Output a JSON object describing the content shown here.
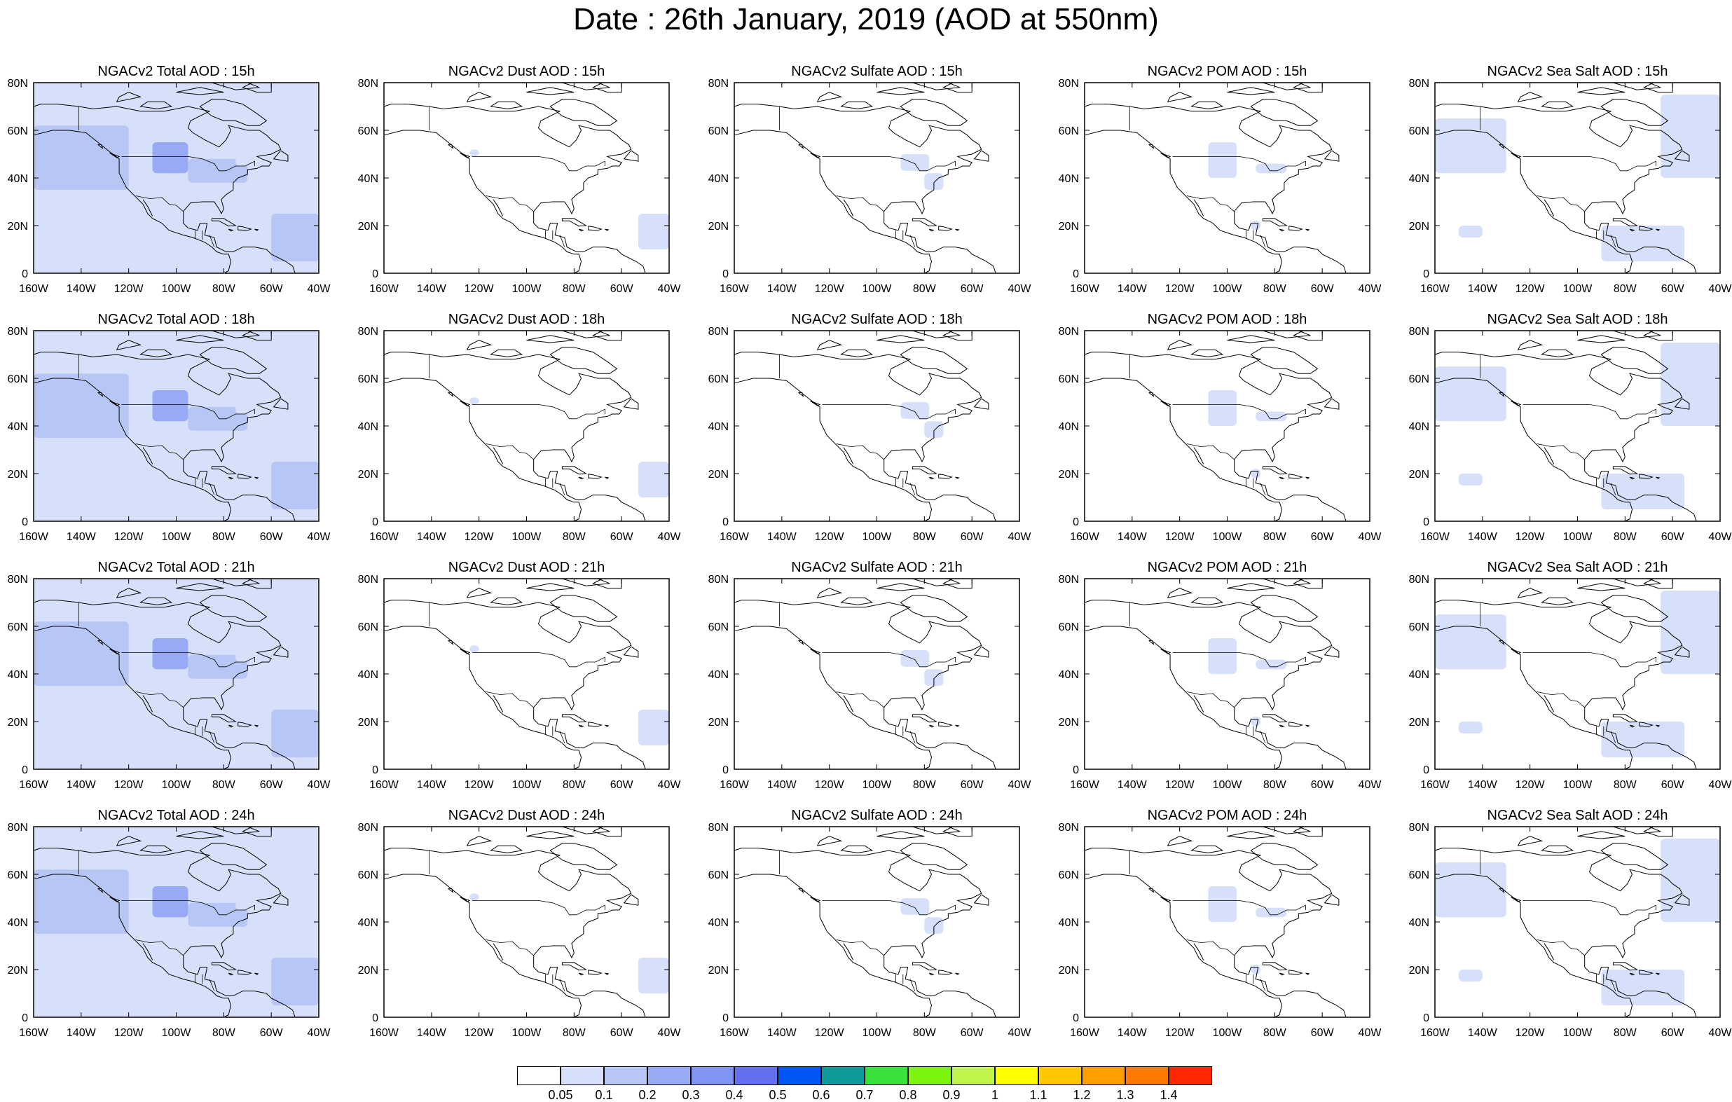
{
  "title": "Date : 26th January, 2019 (AOD at 550nm)",
  "axes": {
    "lon_ticks": [
      "160W",
      "140W",
      "120W",
      "100W",
      "80W",
      "60W",
      "40W"
    ],
    "lat_ticks": [
      "80N",
      "60N",
      "40N",
      "20N",
      "0"
    ],
    "lon_range": [
      -160,
      -40
    ],
    "lat_range": [
      0,
      80
    ]
  },
  "colorbar": {
    "colors": [
      "#ffffff",
      "#d6e0fb",
      "#b7c6f5",
      "#98aaf5",
      "#8095f5",
      "#6470ef",
      "#0057f5",
      "#0f9b9b",
      "#38e238",
      "#7cf50e",
      "#c2f54a",
      "#ffff00",
      "#ffc800",
      "#ffa000",
      "#ff7800",
      "#ff2800"
    ],
    "labels": [
      "0.05",
      "0.1",
      "0.2",
      "0.3",
      "0.4",
      "0.5",
      "0.6",
      "0.7",
      "0.8",
      "0.9",
      "1",
      "1.1",
      "1.2",
      "1.3",
      "1.4"
    ]
  },
  "panel_rows": [
    [
      "NGACv2 Total AOD : 15h",
      "NGACv2 Dust AOD : 15h",
      "NGACv2 Sulfate AOD : 15h",
      "NGACv2 POM AOD : 15h",
      "NGACv2 Sea Salt AOD : 15h"
    ],
    [
      "NGACv2 Total AOD : 18h",
      "NGACv2 Dust AOD : 18h",
      "NGACv2 Sulfate AOD : 18h",
      "NGACv2 POM AOD : 18h",
      "NGACv2 Sea Salt AOD : 18h"
    ],
    [
      "NGACv2 Total AOD : 21h",
      "NGACv2 Dust AOD : 21h",
      "NGACv2 Sulfate AOD : 21h",
      "NGACv2 POM AOD : 21h",
      "NGACv2 Sea Salt AOD : 21h"
    ],
    [
      "NGACv2 Total AOD : 24h",
      "NGACv2 Dust AOD : 24h",
      "NGACv2 Sulfate AOD : 24h",
      "NGACv2 POM AOD : 24h",
      "NGACv2 Sea Salt  AOD : 24h"
    ]
  ],
  "fields": {
    "total": [
      {
        "lon": [
          -160,
          -40
        ],
        "lat": [
          0,
          80
        ],
        "level": 1
      },
      {
        "lon": [
          -160,
          -120
        ],
        "lat": [
          35,
          62
        ],
        "level": 2
      },
      {
        "lon": [
          -110,
          -95
        ],
        "lat": [
          42,
          55
        ],
        "level": 3
      },
      {
        "lon": [
          -95,
          -70
        ],
        "lat": [
          38,
          48
        ],
        "level": 2
      },
      {
        "lon": [
          -60,
          -40
        ],
        "lat": [
          5,
          25
        ],
        "level": 2
      },
      {
        "lon": [
          -75,
          -40
        ],
        "lat": [
          45,
          60
        ],
        "level": 1
      }
    ],
    "dust": [
      {
        "lon": [
          -53,
          -40
        ],
        "lat": [
          10,
          25
        ],
        "level": 1
      },
      {
        "lon": [
          -124,
          -120
        ],
        "lat": [
          49,
          52
        ],
        "level": 1
      }
    ],
    "sulfate": [
      {
        "lon": [
          -90,
          -78
        ],
        "lat": [
          43,
          50
        ],
        "level": 1
      },
      {
        "lon": [
          -80,
          -72
        ],
        "lat": [
          35,
          42
        ],
        "level": 1
      }
    ],
    "pom": [
      {
        "lon": [
          -108,
          -96
        ],
        "lat": [
          40,
          55
        ],
        "level": 1
      },
      {
        "lon": [
          -88,
          -75
        ],
        "lat": [
          42,
          46
        ],
        "level": 1
      },
      {
        "lon": [
          -90,
          -86
        ],
        "lat": [
          18,
          22
        ],
        "level": 1
      }
    ],
    "seasalt": [
      {
        "lon": [
          -160,
          -130
        ],
        "lat": [
          42,
          65
        ],
        "level": 1
      },
      {
        "lon": [
          -65,
          -40
        ],
        "lat": [
          40,
          75
        ],
        "level": 1
      },
      {
        "lon": [
          -90,
          -55
        ],
        "lat": [
          5,
          20
        ],
        "level": 1
      },
      {
        "lon": [
          -150,
          -140
        ],
        "lat": [
          15,
          20
        ],
        "level": 1
      }
    ]
  }
}
